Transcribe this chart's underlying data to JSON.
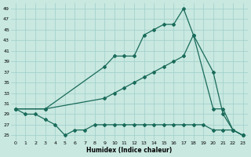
{
  "xlabel": "Humidex (Indice chaleur)",
  "background_color": "#c8e8e0",
  "grid_color": "#9fcfca",
  "line_color": "#1a6b5a",
  "xlim": [
    -0.5,
    23.5
  ],
  "ylim": [
    24,
    50
  ],
  "yticks": [
    25,
    27,
    29,
    31,
    33,
    35,
    37,
    39,
    41,
    43,
    45,
    47,
    49
  ],
  "xticks": [
    0,
    1,
    2,
    3,
    4,
    5,
    6,
    7,
    8,
    9,
    10,
    11,
    12,
    13,
    14,
    15,
    16,
    17,
    18,
    19,
    20,
    21,
    22,
    23
  ],
  "line1_x": [
    0,
    3,
    9,
    10,
    11,
    12,
    13,
    14,
    15,
    16,
    17,
    18,
    20,
    21,
    22,
    23
  ],
  "line1_y": [
    30,
    30,
    38,
    40,
    40,
    40,
    44,
    45,
    46,
    46,
    49,
    44,
    30,
    30,
    26,
    25
  ],
  "line2_x": [
    0,
    3,
    9,
    10,
    11,
    12,
    13,
    14,
    15,
    16,
    17,
    18,
    20,
    21,
    22,
    23
  ],
  "line2_y": [
    30,
    30,
    32,
    33,
    34,
    35,
    36,
    37,
    38,
    39,
    40,
    44,
    37,
    29,
    26,
    25
  ],
  "line3_x": [
    0,
    1,
    2,
    3,
    4,
    5,
    6,
    7,
    8,
    9,
    10,
    11,
    12,
    13,
    14,
    15,
    16,
    17,
    18,
    19,
    20,
    21,
    22,
    23
  ],
  "line3_y": [
    30,
    29,
    29,
    28,
    27,
    25,
    26,
    26,
    27,
    27,
    27,
    27,
    27,
    27,
    27,
    27,
    27,
    27,
    27,
    27,
    26,
    26,
    26,
    25
  ]
}
